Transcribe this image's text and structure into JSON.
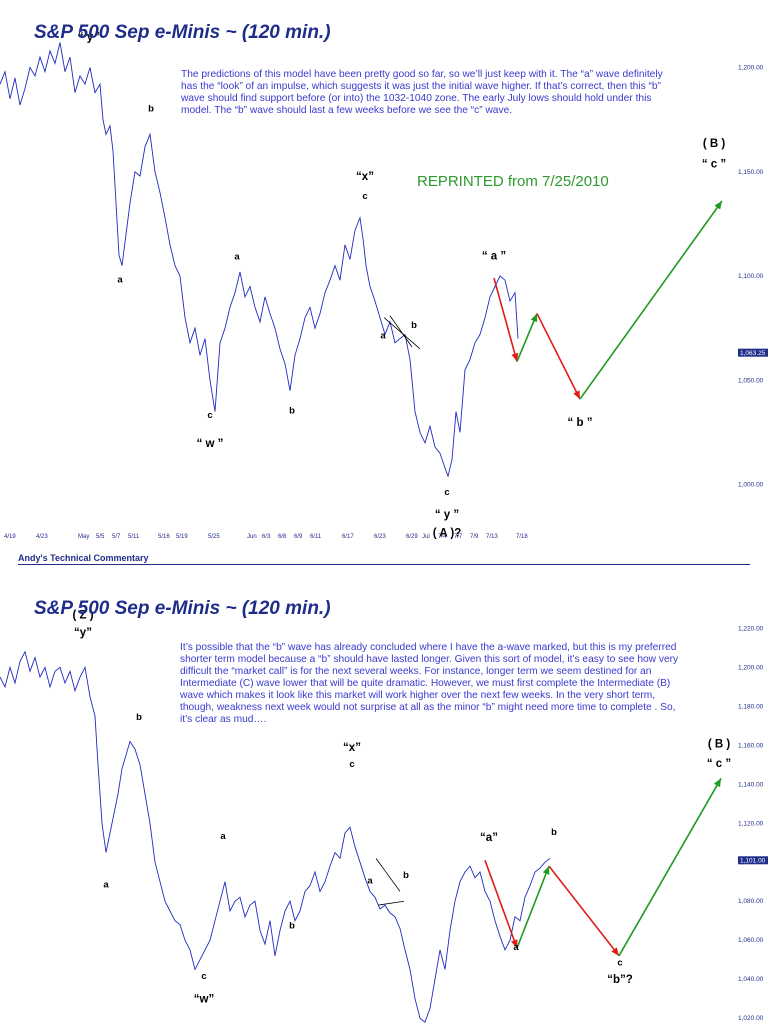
{
  "chart_data": [
    {
      "type": "line",
      "title": "S&P 500 Sep e-Minis ~ (120 min.)",
      "note": "The predictions of this model have been pretty good so far, so we’ll just keep with it.  The “a” wave definitely has the “look” of an impulse, which suggests it was just the initial wave higher.  If that’s correct, then this “b” wave should find support before (or into) the 1032-1040 zone.  The early July lows should hold under this model.  The “b” wave should last a few weeks before we see the “c” wave.",
      "reprint_label": "REPRINTED from 7/25/2010",
      "ylim": [
        983,
        1218
      ],
      "y_ticks": [
        "1,000.00",
        "1,050.00",
        "1,100.00",
        "1,150.00",
        "1,200.00"
      ],
      "price_badge": "1,063.25",
      "price_badge_value": 1063.25,
      "x_ticks": [
        "4/19",
        "4/23",
        "May",
        "5/5",
        "5/7",
        "5/11",
        "5/16",
        "5/19",
        "5/25",
        "Jun",
        "6/3",
        "6/8",
        "6/9",
        "6/11",
        "6/17",
        "6/23",
        "6/29",
        "Jul",
        "7/4",
        "7/7",
        "7/9",
        "7/13",
        "7/18"
      ],
      "series": [
        {
          "x": [
            0,
            5,
            10,
            15,
            20,
            25,
            30,
            35,
            40,
            45,
            50,
            55,
            60,
            65,
            70,
            75,
            80,
            85,
            90,
            95,
            100,
            103,
            106,
            110,
            113,
            116,
            119,
            122,
            126,
            130,
            135,
            140,
            145,
            150,
            155,
            160,
            165,
            170,
            175,
            180,
            185,
            190,
            195,
            200,
            205,
            210,
            215,
            220,
            225,
            230,
            235,
            240,
            245,
            250,
            255,
            260,
            265,
            270,
            275,
            280,
            285,
            290,
            295,
            300,
            305,
            310,
            315,
            320,
            325,
            330,
            335,
            340,
            345,
            350,
            355,
            360,
            363,
            366,
            370,
            375,
            380,
            385,
            390,
            395,
            400,
            405,
            410,
            415,
            420,
            425,
            430,
            435,
            440,
            445,
            448,
            452,
            456,
            460,
            465,
            470,
            475,
            480,
            485,
            490,
            495,
            500,
            505,
            510,
            515,
            518
          ],
          "values": [
            1192,
            1198,
            1185,
            1195,
            1182,
            1190,
            1200,
            1196,
            1205,
            1198,
            1208,
            1202,
            1212,
            1198,
            1205,
            1188,
            1196,
            1192,
            1200,
            1188,
            1192,
            1175,
            1168,
            1172,
            1160,
            1135,
            1110,
            1105,
            1120,
            1135,
            1150,
            1148,
            1162,
            1168,
            1150,
            1140,
            1128,
            1115,
            1105,
            1100,
            1080,
            1068,
            1075,
            1062,
            1070,
            1050,
            1035,
            1068,
            1075,
            1085,
            1092,
            1102,
            1090,
            1095,
            1085,
            1078,
            1090,
            1082,
            1075,
            1065,
            1058,
            1045,
            1062,
            1070,
            1080,
            1085,
            1075,
            1082,
            1092,
            1098,
            1105,
            1098,
            1115,
            1108,
            1122,
            1128,
            1118,
            1105,
            1095,
            1088,
            1080,
            1072,
            1078,
            1068,
            1070,
            1072,
            1060,
            1035,
            1025,
            1020,
            1028,
            1018,
            1015,
            1008,
            1004,
            1012,
            1035,
            1025,
            1055,
            1060,
            1068,
            1072,
            1080,
            1090,
            1095,
            1100,
            1098,
            1088,
            1092,
            1070
          ]
        },
        {
          "name": "projection",
          "x": [
            494,
            517,
            537,
            580,
            722
          ],
          "values": [
            1099,
            1059,
            1082,
            1041,
            1136
          ]
        }
      ],
      "wave_labels": [
        {
          "text": "“ y ”",
          "x": 90,
          "y": 1213
        },
        {
          "text": "b",
          "x": 151,
          "y": 1179
        },
        {
          "text": "a",
          "x": 120,
          "y": 1097
        },
        {
          "text": "a",
          "x": 237,
          "y": 1108
        },
        {
          "text": "c",
          "x": 210,
          "y": 1032
        },
        {
          "text": "“ w ”",
          "x": 210,
          "y": 1018
        },
        {
          "text": "b",
          "x": 292,
          "y": 1034
        },
        {
          "text": "“x”",
          "x": 365,
          "y": 1146
        },
        {
          "text": "c",
          "x": 365,
          "y": 1137
        },
        {
          "text": "a",
          "x": 383,
          "y": 1070
        },
        {
          "text": "b",
          "x": 414,
          "y": 1075
        },
        {
          "text": "c",
          "x": 447,
          "y": 995
        },
        {
          "text": "“ y ”",
          "x": 447,
          "y": 984
        },
        {
          "text": "( A )?",
          "x": 447,
          "y": 975
        },
        {
          "text": "“ a ”",
          "x": 494,
          "y": 1108
        },
        {
          "text": "“ b ”",
          "x": 580,
          "y": 1028
        },
        {
          "text": "( B )",
          "x": 714,
          "y": 1162
        },
        {
          "text": "“ c ”",
          "x": 714,
          "y": 1152
        }
      ]
    },
    {
      "type": "line",
      "title": "S&P 500 Sep e-Minis ~ (120 min.)",
      "note": "It’s possible that the “b” wave has already concluded where I have the a-wave marked, but this is my preferred shorter term model because a “b” should have lasted longer.  Given this sort of model, it’s easy to see how very difficult the “market call” is for the next several weeks.  For instance, longer term we seem destined for an Intermediate (C) wave lower that will be quite dramatic.  However, we must first complete the Intermediate (B) wave which makes it look like this market will work higher over the next few weeks.  In the very short term, though,  weakness next week would not surprise at all as the minor “b” might need more time to complete .  So, it’s clear as mud….",
      "ylim": [
        1017,
        1232
      ],
      "y_ticks": [
        "1,020.00",
        "1,040.00",
        "1,060.00",
        "1,080.00",
        "1,100.00",
        "1,120.00",
        "1,140.00",
        "1,160.00",
        "1,180.00",
        "1,200.00",
        "1,220.00"
      ],
      "price_badge": "1,101.00",
      "price_badge_value": 1101.0,
      "series": [
        {
          "x": [
            0,
            5,
            10,
            15,
            20,
            25,
            30,
            35,
            40,
            45,
            50,
            55,
            60,
            65,
            70,
            75,
            80,
            85,
            90,
            95,
            98,
            102,
            106,
            110,
            114,
            118,
            122,
            126,
            130,
            135,
            140,
            145,
            150,
            155,
            160,
            165,
            170,
            175,
            180,
            185,
            190,
            195,
            200,
            205,
            210,
            215,
            220,
            225,
            230,
            235,
            240,
            245,
            250,
            255,
            260,
            265,
            270,
            275,
            280,
            285,
            290,
            295,
            300,
            305,
            310,
            315,
            320,
            325,
            330,
            335,
            340,
            345,
            350,
            355,
            360,
            365,
            370,
            375,
            380,
            385,
            390,
            395,
            400,
            405,
            410,
            415,
            420,
            425,
            430,
            435,
            440,
            445,
            450,
            455,
            460,
            465,
            470,
            475,
            480,
            485,
            490,
            495,
            500,
            505,
            510,
            515,
            520,
            525,
            530,
            535,
            540,
            545,
            550
          ],
          "values": [
            1195,
            1190,
            1200,
            1192,
            1203,
            1208,
            1198,
            1205,
            1195,
            1200,
            1190,
            1198,
            1200,
            1192,
            1198,
            1188,
            1195,
            1200,
            1185,
            1175,
            1150,
            1120,
            1105,
            1115,
            1125,
            1135,
            1148,
            1155,
            1162,
            1158,
            1150,
            1135,
            1120,
            1100,
            1090,
            1080,
            1075,
            1070,
            1068,
            1060,
            1055,
            1045,
            1050,
            1055,
            1060,
            1070,
            1080,
            1090,
            1075,
            1080,
            1082,
            1072,
            1078,
            1080,
            1065,
            1058,
            1070,
            1052,
            1065,
            1075,
            1080,
            1070,
            1075,
            1085,
            1088,
            1095,
            1085,
            1090,
            1098,
            1105,
            1102,
            1115,
            1118,
            1108,
            1100,
            1092,
            1085,
            1082,
            1076,
            1078,
            1074,
            1072,
            1066,
            1055,
            1045,
            1030,
            1020,
            1018,
            1025,
            1040,
            1055,
            1045,
            1065,
            1080,
            1090,
            1095,
            1098,
            1092,
            1095,
            1085,
            1080,
            1070,
            1062,
            1055,
            1060,
            1072,
            1070,
            1082,
            1088,
            1095,
            1097,
            1100,
            1102
          ]
        },
        {
          "name": "projection",
          "x": [
            485,
            517,
            549,
            619,
            721
          ],
          "values": [
            1101,
            1056,
            1098,
            1052,
            1143
          ]
        }
      ],
      "wave_labels": [
        {
          "text": "( Z )",
          "x": 83,
          "y": 1225
        },
        {
          "text": "“y”",
          "x": 83,
          "y": 1216
        },
        {
          "text": "b",
          "x": 139,
          "y": 1173
        },
        {
          "text": "a",
          "x": 106,
          "y": 1087
        },
        {
          "text": "a",
          "x": 223,
          "y": 1112
        },
        {
          "text": "c",
          "x": 204,
          "y": 1040
        },
        {
          "text": "“w”",
          "x": 204,
          "y": 1028
        },
        {
          "text": "b",
          "x": 292,
          "y": 1066
        },
        {
          "text": "“x”",
          "x": 352,
          "y": 1157
        },
        {
          "text": "c",
          "x": 352,
          "y": 1149
        },
        {
          "text": "a",
          "x": 370,
          "y": 1089
        },
        {
          "text": "b",
          "x": 406,
          "y": 1092
        },
        {
          "text": "“a”",
          "x": 489,
          "y": 1111
        },
        {
          "text": "a",
          "x": 516,
          "y": 1055
        },
        {
          "text": "b",
          "x": 554,
          "y": 1114
        },
        {
          "text": "c",
          "x": 620,
          "y": 1047
        },
        {
          "text": "“b”?",
          "x": 620,
          "y": 1038
        },
        {
          "text": "( B )",
          "x": 719,
          "y": 1159
        },
        {
          "text": "“ c ”",
          "x": 719,
          "y": 1149
        }
      ]
    }
  ],
  "footer": {
    "commentary": "Andy's Technical Commentary"
  },
  "colors": {
    "title": "#1f2d8a",
    "note_text": "#3a3acf",
    "price_line": "#1e2bbf",
    "projection_down": "#e11b1b",
    "projection_up": "#1e9a1e",
    "reprint_text": "#2e9a2e",
    "badge": "#1f2d8a"
  }
}
